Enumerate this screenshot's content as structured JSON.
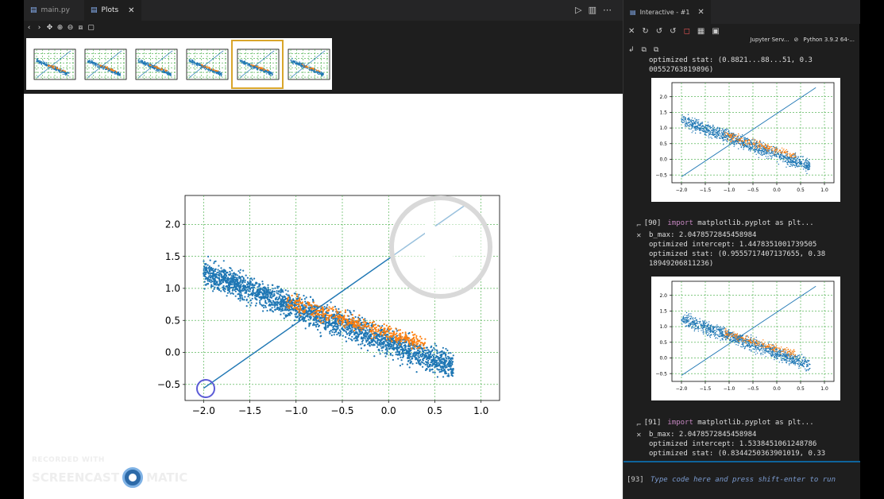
{
  "editor": {
    "tabs": [
      {
        "label": "main.py",
        "icon": "python-file-icon",
        "active": false
      },
      {
        "label": "Plots",
        "icon": "plots-icon",
        "active": true
      }
    ],
    "actions": [
      "▷",
      "▥",
      "⋯"
    ]
  },
  "plot_toolbar": [
    "‹",
    "›",
    "✥",
    "⊕",
    "⊖",
    "⧈",
    "▢"
  ],
  "thumbnails": {
    "count": 6,
    "selected_index": 4
  },
  "chart_data": {
    "type": "scatter",
    "xlim": [
      -2.2,
      1.2
    ],
    "ylim": [
      -0.75,
      2.45
    ],
    "xticks": [
      -2.0,
      -1.5,
      -1.0,
      -0.5,
      0.0,
      0.5,
      1.0
    ],
    "yticks": [
      -0.5,
      0.0,
      0.5,
      1.0,
      1.5,
      2.0
    ],
    "xtick_labels": [
      "−2.0",
      "−1.5",
      "−1.0",
      "−0.5",
      "0.0",
      "0.5",
      "1.0"
    ],
    "ytick_labels": [
      "−0.5",
      "0.0",
      "0.5",
      "1.0",
      "1.5",
      "2.0"
    ],
    "grid": true,
    "series": [
      {
        "color": "#1f77b4",
        "kind": "points",
        "count": 2500,
        "x_range": [
          -2.0,
          0.7
        ]
      },
      {
        "color": "#ff7f0e",
        "kind": "points",
        "count": 450,
        "x_range": [
          -1.1,
          0.4
        ]
      },
      {
        "color": "#1f77b4",
        "kind": "line",
        "x": [
          -2.0,
          0.82
        ],
        "y": [
          -0.56,
          2.29
        ]
      }
    ],
    "colors": {
      "blue": "#1f77b4",
      "orange": "#ff7f0e",
      "grid": "#3ba93b"
    }
  },
  "overlay": {
    "play_button": true,
    "cursor_icon": "hand-cursor-icon"
  },
  "watermark": {
    "line1": "RECORDED WITH",
    "line2a": "SCREENCAST",
    "line2b": "MATIC"
  },
  "panel": {
    "tab_label": "Interactive - #1",
    "kernel": {
      "server": "Jupyter Serv...",
      "python": "Python 3.9.2 64-..."
    },
    "truncated_output": "optimized stat: (0.8821...88...51, 0.3\n00552763819896)",
    "cells": [
      {
        "prompt": "[90]",
        "code_kw": "import",
        "code_rest": " matplotlib.pyplot as plt...",
        "output": "b_max: 2.0478572845458984\noptimized intercept: 1.4478351001739505\noptimized stat: (0.9555717407137655, 0.38\n18949206811236)"
      },
      {
        "prompt": "[91]",
        "code_kw": "import",
        "code_rest": " matplotlib.pyplot as plt...",
        "output": "b_max: 2.0478572845458984\noptimized intercept: 1.5338451061248786\noptimized stat: (0.8344250363901019, 0.33"
      }
    ],
    "mini_xticks": [
      "−2.0",
      "−1.5",
      "−1.0",
      "−0.5",
      "0.0",
      "0.5",
      "1.0"
    ],
    "mini_yticks": [
      "2.0",
      "1.5",
      "1.0",
      "0.5",
      "0.0",
      "−0.5"
    ],
    "input": {
      "prompt": "[93]",
      "placeholder": "Type code here and press shift-enter to run"
    }
  }
}
